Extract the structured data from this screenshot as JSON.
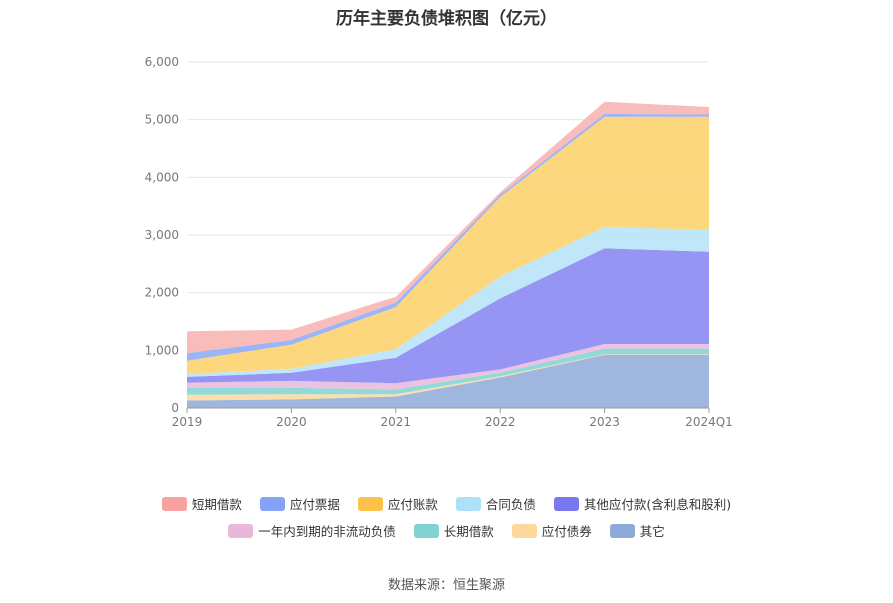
{
  "chart_data": {
    "type": "area",
    "title": "历年主要负债堆积图（亿元）",
    "categories": [
      "2019",
      "2020",
      "2021",
      "2022",
      "2023",
      "2024Q1"
    ],
    "y_ticks": [
      "0",
      "1,000",
      "2,000",
      "3,000",
      "4,000",
      "5,000",
      "6,000"
    ],
    "ylim": [
      0,
      6000
    ],
    "stacked": true,
    "grid": true,
    "legend_position": "bottom",
    "series": [
      {
        "name": "其它",
        "color": "#8eaad8",
        "values": [
          130,
          150,
          200,
          530,
          920,
          920
        ]
      },
      {
        "name": "应付债券",
        "color": "#fdd89b",
        "values": [
          100,
          90,
          40,
          20,
          10,
          10
        ]
      },
      {
        "name": "长期借款",
        "color": "#7fd3d3",
        "values": [
          120,
          110,
          80,
          60,
          100,
          100
        ]
      },
      {
        "name": "一年内到期的非流动负债",
        "color": "#e8b7da",
        "values": [
          90,
          120,
          110,
          60,
          80,
          80
        ]
      },
      {
        "name": "其他应付款(含利息和股利)",
        "color": "#8583f2",
        "values": [
          100,
          140,
          440,
          1230,
          1660,
          1600
        ]
      },
      {
        "name": "合同负债",
        "color": "#b4e3f8",
        "values": [
          50,
          70,
          150,
          380,
          370,
          380
        ]
      },
      {
        "name": "应付账款",
        "color": "#fdd067",
        "values": [
          230,
          420,
          730,
          1380,
          1910,
          1960
        ]
      },
      {
        "name": "应付票据",
        "color": "#8ba7f7",
        "values": [
          130,
          80,
          80,
          40,
          50,
          40
        ]
      },
      {
        "name": "短期借款",
        "color": "#f7b2ae",
        "values": [
          380,
          180,
          100,
          40,
          210,
          130
        ]
      }
    ]
  },
  "legend": {
    "row1": [
      {
        "label": "短期借款",
        "color": "#f7a29c"
      },
      {
        "label": "应付票据",
        "color": "#86a2f7"
      },
      {
        "label": "应付账款",
        "color": "#fcc24a"
      },
      {
        "label": "合同负债",
        "color": "#ace1f8"
      },
      {
        "label": "其他应付款(含利息和股利)",
        "color": "#7a78f0"
      }
    ],
    "row2": [
      {
        "label": "一年内到期的非流动负债",
        "color": "#e8b7da"
      },
      {
        "label": "长期借款",
        "color": "#7fd3d3"
      },
      {
        "label": "应付债券",
        "color": "#fdd89b"
      },
      {
        "label": "其它",
        "color": "#8eaad8"
      }
    ]
  },
  "source": "数据来源：恒生聚源"
}
